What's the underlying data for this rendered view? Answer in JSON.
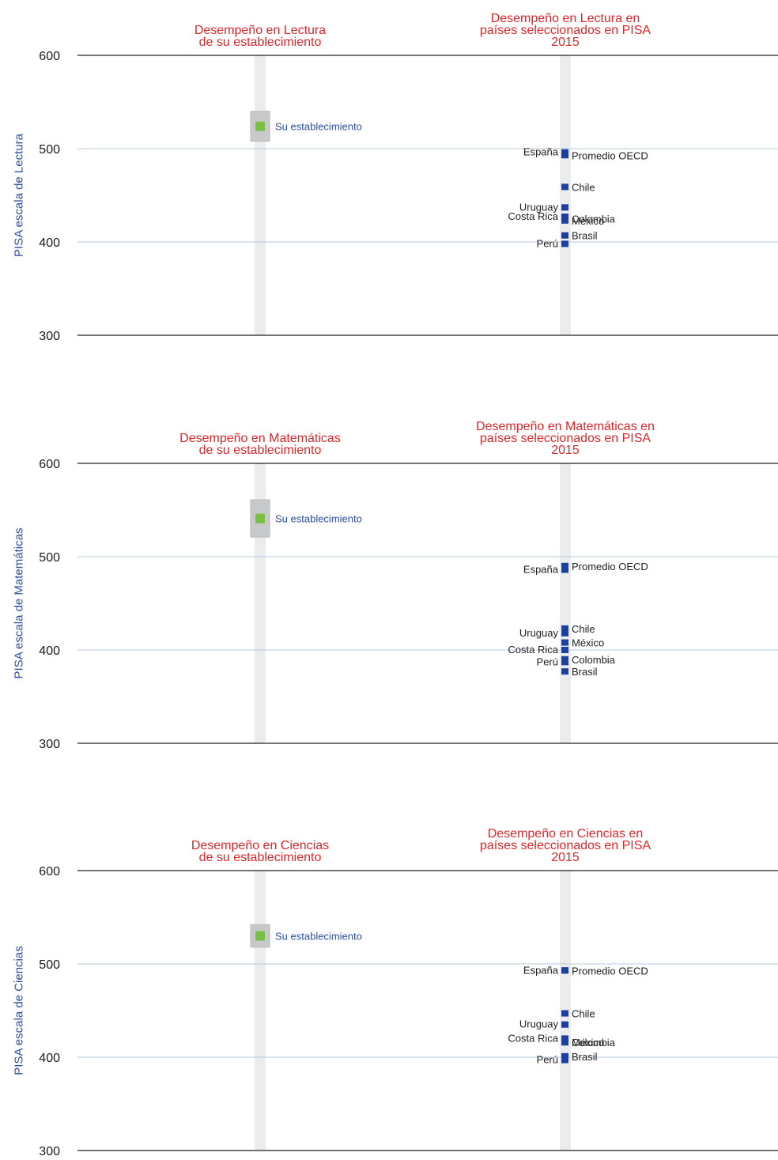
{
  "colors": {
    "title": "#e0262a",
    "axis_label": "#2b4ea2",
    "marker": "#1f3f9a",
    "school_marker": "#77c043",
    "school_box": "#c8c9ca",
    "column_bg": "#ebecee",
    "grid": "#b9c9dc",
    "axis_line": "#222222",
    "country_text": "#1d1d1d",
    "school_text": "#2b4ea2"
  },
  "chart_data": [
    {
      "type": "scatter",
      "ylabel": "PISA escala de Lectura",
      "ylim": [
        300,
        600
      ],
      "yticks": [
        "600",
        "500",
        "400",
        "300"
      ],
      "left_title": [
        "Desempeño en Lectura",
        "de su establecimiento"
      ],
      "right_title": [
        "Desempeño en Lectura en",
        "países seleccionados en PISA",
        "2015"
      ],
      "school": {
        "label": "Su establecimiento",
        "value": 524,
        "low": 508,
        "high": 540
      },
      "points_left": [
        {
          "label": "España",
          "value": 496
        },
        {
          "label": "Uruguay",
          "value": 437
        },
        {
          "label": "Costa Rica",
          "value": 427
        },
        {
          "label": "Perú",
          "value": 398
        }
      ],
      "points_right": [
        {
          "label": "Promedio OECD",
          "value": 493
        },
        {
          "label": "Chile",
          "value": 459
        },
        {
          "label": "Colombia",
          "value": 425
        },
        {
          "label": "México",
          "value": 423
        },
        {
          "label": "Brasil",
          "value": 407
        }
      ]
    },
    {
      "type": "scatter",
      "ylabel": "PISA escala de Matemáticas",
      "ylim": [
        300,
        600
      ],
      "yticks": [
        "600",
        "500",
        "400",
        "300"
      ],
      "left_title": [
        "Desempeño en Matemáticas",
        "de su establecimiento"
      ],
      "right_title": [
        "Desempeño en Matemáticas en",
        "países seleccionados en PISA",
        "2015"
      ],
      "school": {
        "label": "Su establecimiento",
        "value": 541,
        "low": 521,
        "high": 561
      },
      "points_left": [
        {
          "label": "España",
          "value": 486
        },
        {
          "label": "Uruguay",
          "value": 418
        },
        {
          "label": "Costa Rica",
          "value": 400
        },
        {
          "label": "Perú",
          "value": 387
        }
      ],
      "points_right": [
        {
          "label": "Promedio OECD",
          "value": 490
        },
        {
          "label": "Chile",
          "value": 423
        },
        {
          "label": "México",
          "value": 408
        },
        {
          "label": "Colombia",
          "value": 390
        },
        {
          "label": "Brasil",
          "value": 377
        }
      ]
    },
    {
      "type": "scatter",
      "ylabel": "PISA escala de Ciencias",
      "ylim": [
        300,
        600
      ],
      "yticks": [
        "600",
        "500",
        "400",
        "300"
      ],
      "left_title": [
        "Desempeño en Ciencias",
        "de su establecimiento"
      ],
      "right_title": [
        "Desempeño en Ciencias en",
        "países seleccionados en PISA",
        "2015"
      ],
      "school": {
        "label": "Su establecimiento",
        "value": 530,
        "low": 518,
        "high": 542
      },
      "points_left": [
        {
          "label": "España",
          "value": 493
        },
        {
          "label": "Uruguay",
          "value": 435
        },
        {
          "label": "Costa Rica",
          "value": 420
        },
        {
          "label": "Perú",
          "value": 397
        }
      ],
      "points_right": [
        {
          "label": "Promedio OECD",
          "value": 493
        },
        {
          "label": "Chile",
          "value": 447
        },
        {
          "label": "Colombia",
          "value": 416
        },
        {
          "label": "México",
          "value": 416
        },
        {
          "label": "Brasil",
          "value": 401
        }
      ]
    }
  ]
}
